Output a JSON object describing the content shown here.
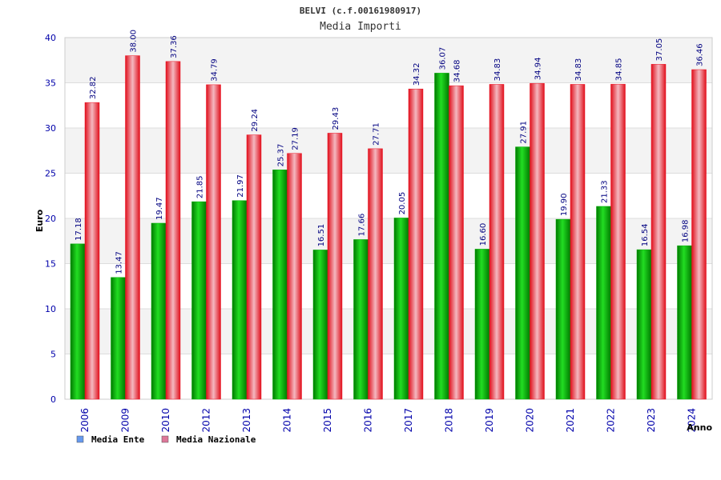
{
  "chart_data": {
    "type": "bar",
    "title": "BELVI (c.f.00161980917)",
    "subtitle": "Media Importi",
    "xlabel": "Anno",
    "ylabel": "Euro",
    "ylim": [
      0,
      40
    ],
    "yticks": [
      0,
      5,
      10,
      15,
      20,
      25,
      30,
      35,
      40
    ],
    "categories": [
      "2006",
      "2009",
      "2010",
      "2012",
      "2013",
      "2014",
      "2015",
      "2016",
      "2017",
      "2018",
      "2019",
      "2020",
      "2021",
      "2022",
      "2023",
      "2024"
    ],
    "series": [
      {
        "name": "Media Ente",
        "values": [
          17.18,
          13.47,
          19.47,
          21.85,
          21.97,
          25.37,
          16.51,
          17.66,
          20.05,
          36.07,
          16.6,
          27.91,
          19.9,
          21.33,
          16.54,
          16.98
        ],
        "labels": [
          "17.18",
          "13.47",
          "19.47",
          "21.85",
          "21.97",
          "25.37",
          "16.51",
          "17.66",
          "20.05",
          "36.07",
          "16.60",
          "27.91",
          "19.90",
          "21.33",
          "16.54",
          "16.98"
        ],
        "color": "#00aa00",
        "legend_color": "#6699ee"
      },
      {
        "name": "Media Nazionale",
        "values": [
          32.82,
          38.0,
          37.36,
          34.79,
          29.24,
          27.19,
          29.43,
          27.71,
          34.32,
          34.68,
          34.83,
          34.94,
          34.83,
          34.85,
          37.05,
          36.46
        ],
        "labels": [
          "32.82",
          "38.00",
          "37.36",
          "34.79",
          "29.24",
          "27.19",
          "29.43",
          "27.71",
          "34.32",
          "34.68",
          "34.83",
          "34.94",
          "34.83",
          "34.85",
          "37.05",
          "36.46"
        ],
        "color": "#ee1122",
        "legend_color": "#dd7799"
      }
    ],
    "grid": true,
    "legend": "bottom-left"
  }
}
